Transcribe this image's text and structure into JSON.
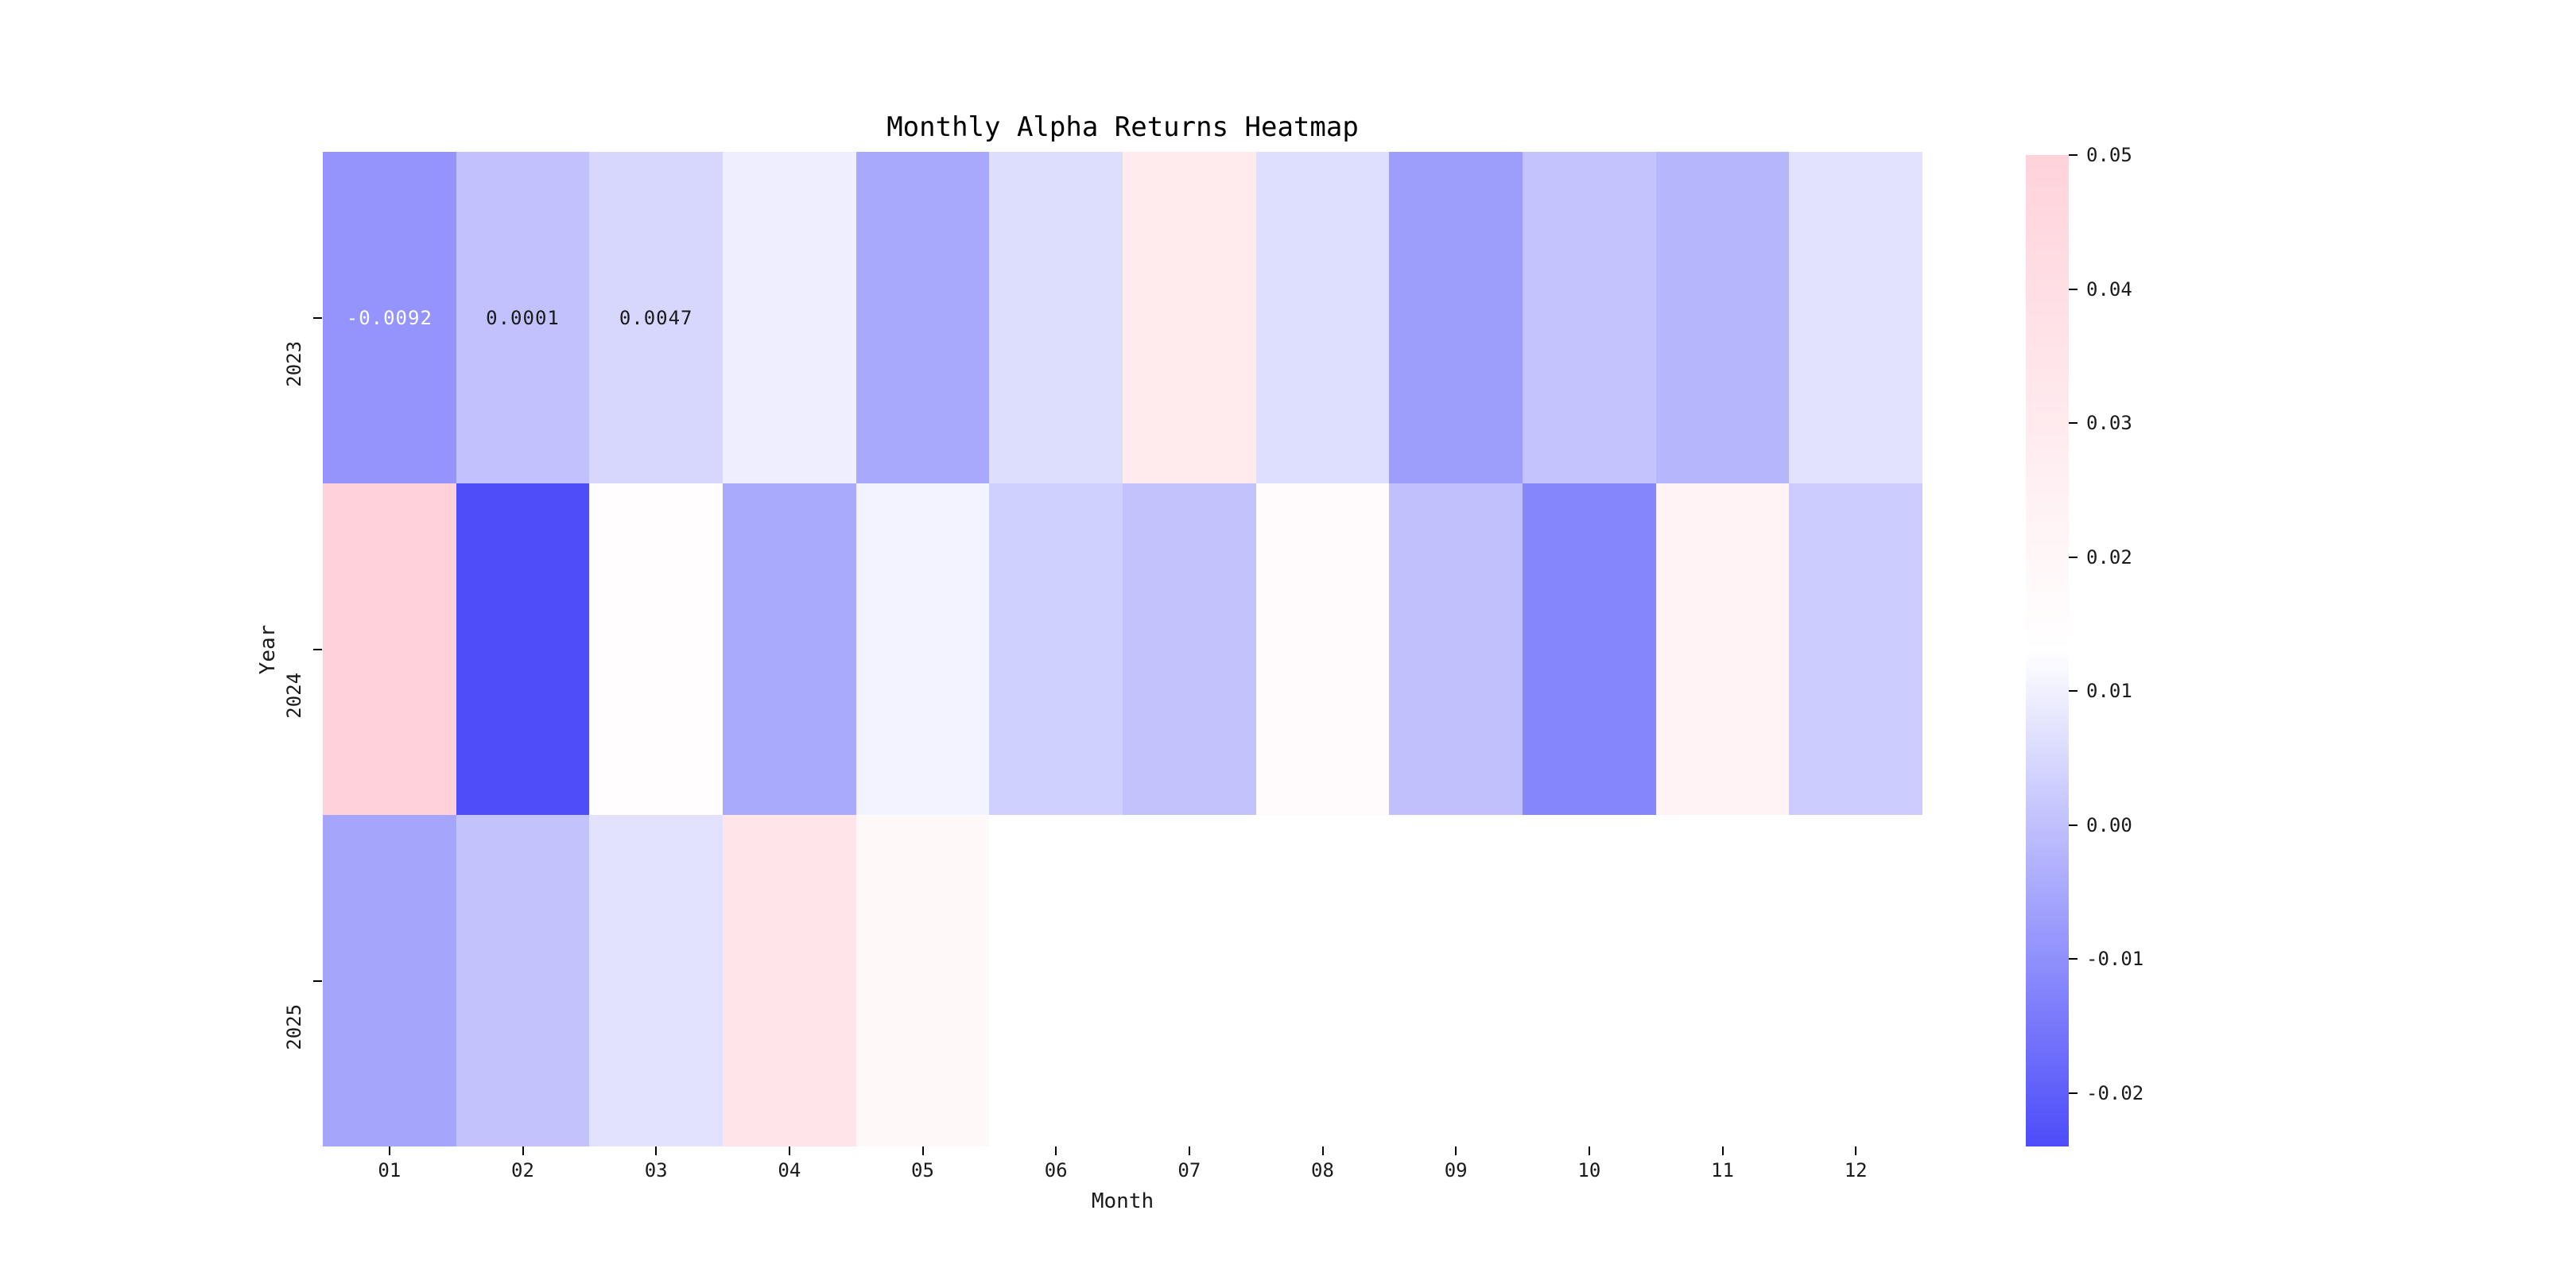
{
  "chart_data": {
    "type": "heatmap",
    "title": "Monthly Alpha Returns Heatmap",
    "xlabel": "Month",
    "ylabel": "Year",
    "x_categories": [
      "01",
      "02",
      "03",
      "04",
      "05",
      "06",
      "07",
      "08",
      "09",
      "10",
      "11",
      "12"
    ],
    "y_categories": [
      "2023",
      "2024",
      "2025"
    ],
    "values": [
      [
        -0.0092,
        0.0001,
        0.0047,
        0.0095,
        -0.005,
        0.006,
        0.03,
        0.0062,
        -0.0072,
        0.0005,
        -0.0021,
        0.007
      ],
      [
        0.0498,
        -0.0238,
        0.0145,
        -0.0045,
        0.0105,
        0.0033,
        0.0004,
        0.0165,
        0.0,
        -0.012,
        0.023,
        0.0025
      ],
      [
        -0.0056,
        0.0004,
        0.007,
        0.0352,
        0.0188,
        null,
        null,
        null,
        null,
        null,
        null,
        null
      ]
    ],
    "missing_cell_color": "#ffffff",
    "annotations": [
      {
        "row": 0,
        "col": 0,
        "text": "-0.0092",
        "text_color": "#ffffff"
      },
      {
        "row": 0,
        "col": 1,
        "text": "0.0001",
        "text_color": "#1a1a1a"
      },
      {
        "row": 0,
        "col": 2,
        "text": "0.0047",
        "text_color": "#1a1a1a"
      }
    ],
    "colormap": {
      "low": "#4C4CFA",
      "mid": "#FFFFFF",
      "high": "#FFD2DB",
      "vmin": -0.024,
      "vmax": 0.05
    },
    "colorbar": {
      "tick_labels": [
        "0.05",
        "0.04",
        "0.03",
        "0.02",
        "0.01",
        "0.00",
        "-0.01",
        "-0.02"
      ],
      "tick_values": [
        0.05,
        0.04,
        0.03,
        0.02,
        0.01,
        0.0,
        -0.01,
        -0.02
      ],
      "position": "right"
    },
    "legend": null,
    "grid": false
  }
}
